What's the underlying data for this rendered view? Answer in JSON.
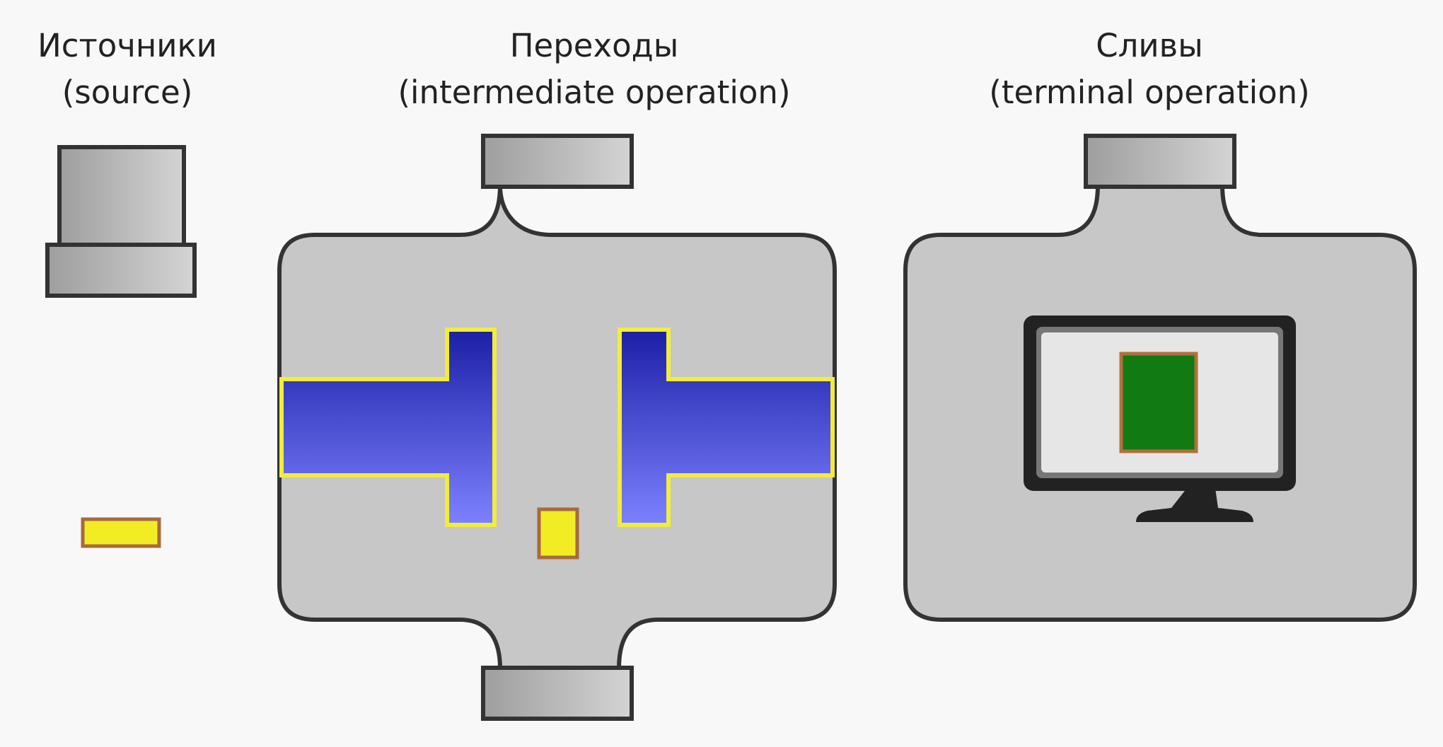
{
  "columns": [
    {
      "title": "Источники",
      "subtitle": "(source)"
    },
    {
      "title": "Переходы",
      "subtitle": "(intermediate operation)"
    },
    {
      "title": "Сливы",
      "subtitle": "(terminal operation)"
    }
  ],
  "colors": {
    "background": "#f8f8f8",
    "body_fill": "#c7c7c7",
    "outline": "#333333",
    "plug_dark": "#9e9e9e",
    "plug_light": "#d4d4d4",
    "pipe_dark": "#1c1fa6",
    "pipe_light": "#7c82ff",
    "pipe_border": "#f2ec3c",
    "element_fill": "#f2ec25",
    "element_border": "#a86a3c",
    "monitor_frame": "#222222",
    "monitor_screen": "#e6e6e6",
    "result_fill": "#127a12",
    "result_border": "#b0703c"
  }
}
